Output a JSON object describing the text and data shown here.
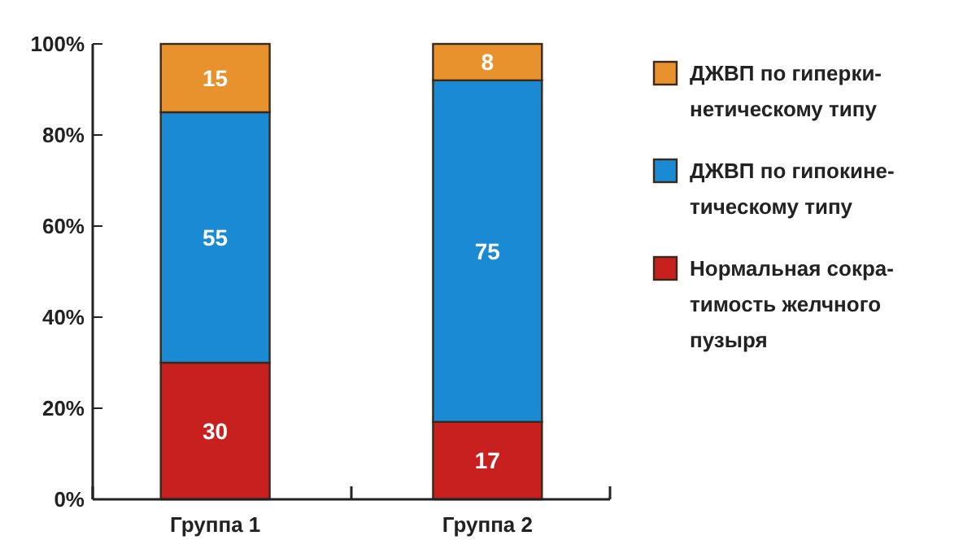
{
  "chart_data": {
    "type": "bar",
    "stacked": true,
    "categories": [
      "Группа 1",
      "Группа 2"
    ],
    "series": [
      {
        "name": "Нормальная сокра-\nтимость желчного\nпузыря",
        "color": "#c8201e",
        "values": [
          30,
          17
        ]
      },
      {
        "name": "ДЖВП по гипокине-\nтическому типу",
        "color": "#1a8ad4",
        "values": [
          55,
          75
        ]
      },
      {
        "name": "ДЖВП по гиперки-\nнетическому типу",
        "color": "#e8922e",
        "values": [
          15,
          8
        ]
      }
    ],
    "ylim": [
      0,
      100
    ],
    "yticks": [
      {
        "value": 0,
        "label": "0%"
      },
      {
        "value": 20,
        "label": "20%"
      },
      {
        "value": 40,
        "label": "40%"
      },
      {
        "value": 60,
        "label": "60%"
      },
      {
        "value": 80,
        "label": "80%"
      },
      {
        "value": 100,
        "label": "100%"
      }
    ],
    "data_labels": true,
    "legend": "right",
    "grid": false
  }
}
